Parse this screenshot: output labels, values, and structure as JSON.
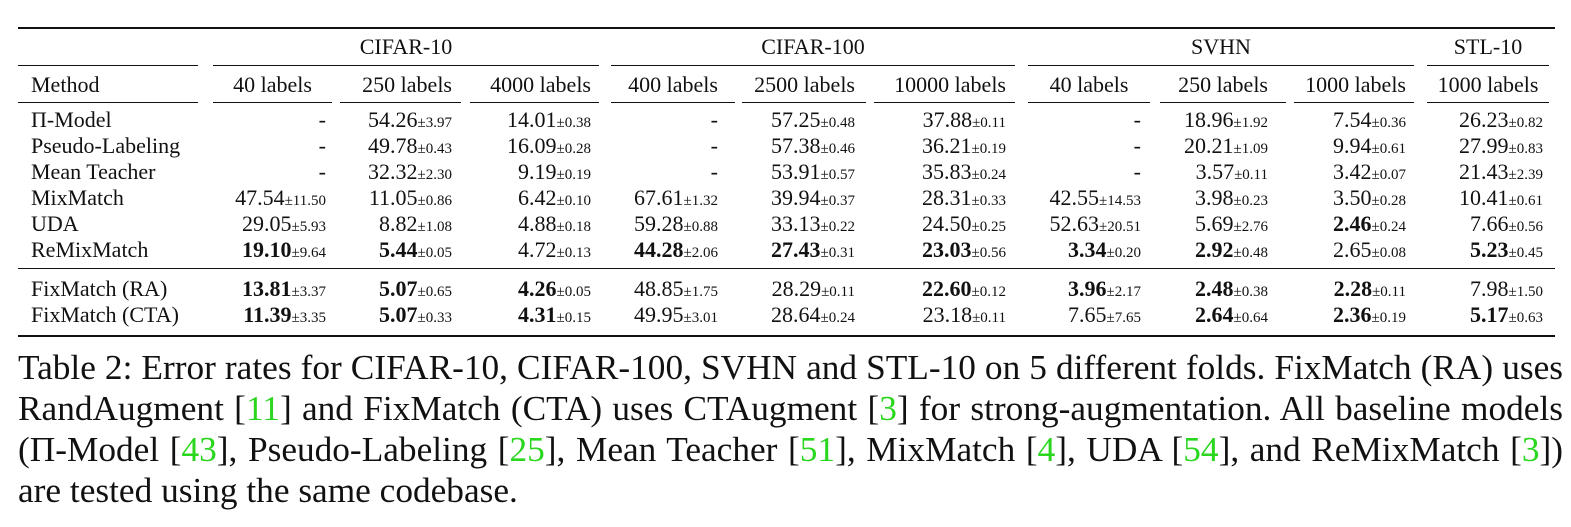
{
  "table": {
    "groups": [
      {
        "name": "CIFAR-10",
        "cols": 3
      },
      {
        "name": "CIFAR-100",
        "cols": 3
      },
      {
        "name": "SVHN",
        "cols": 3
      },
      {
        "name": "STL-10",
        "cols": 1
      }
    ],
    "method_header": "Method",
    "columns": [
      "40 labels",
      "250 labels",
      "4000 labels",
      "400 labels",
      "2500 labels",
      "10000 labels",
      "40 labels",
      "250 labels",
      "1000 labels",
      "1000 labels"
    ],
    "rows": [
      {
        "method": "Π-Model",
        "cells": [
          {
            "v": "-"
          },
          {
            "v": "54.26",
            "s": "±3.97"
          },
          {
            "v": "14.01",
            "s": "±0.38"
          },
          {
            "v": "-"
          },
          {
            "v": "57.25",
            "s": "±0.48"
          },
          {
            "v": "37.88",
            "s": "±0.11"
          },
          {
            "v": "-"
          },
          {
            "v": "18.96",
            "s": "±1.92"
          },
          {
            "v": "7.54",
            "s": "±0.36"
          },
          {
            "v": "26.23",
            "s": "±0.82"
          }
        ]
      },
      {
        "method": "Pseudo-Labeling",
        "cells": [
          {
            "v": "-"
          },
          {
            "v": "49.78",
            "s": "±0.43"
          },
          {
            "v": "16.09",
            "s": "±0.28"
          },
          {
            "v": "-"
          },
          {
            "v": "57.38",
            "s": "±0.46"
          },
          {
            "v": "36.21",
            "s": "±0.19"
          },
          {
            "v": "-"
          },
          {
            "v": "20.21",
            "s": "±1.09"
          },
          {
            "v": "9.94",
            "s": "±0.61"
          },
          {
            "v": "27.99",
            "s": "±0.83"
          }
        ]
      },
      {
        "method": "Mean Teacher",
        "cells": [
          {
            "v": "-"
          },
          {
            "v": "32.32",
            "s": "±2.30"
          },
          {
            "v": "9.19",
            "s": "±0.19"
          },
          {
            "v": "-"
          },
          {
            "v": "53.91",
            "s": "±0.57"
          },
          {
            "v": "35.83",
            "s": "±0.24"
          },
          {
            "v": "-"
          },
          {
            "v": "3.57",
            "s": "±0.11"
          },
          {
            "v": "3.42",
            "s": "±0.07"
          },
          {
            "v": "21.43",
            "s": "±2.39"
          }
        ]
      },
      {
        "method": "MixMatch",
        "cells": [
          {
            "v": "47.54",
            "s": "±11.50"
          },
          {
            "v": "11.05",
            "s": "±0.86"
          },
          {
            "v": "6.42",
            "s": "±0.10"
          },
          {
            "v": "67.61",
            "s": "±1.32"
          },
          {
            "v": "39.94",
            "s": "±0.37"
          },
          {
            "v": "28.31",
            "s": "±0.33"
          },
          {
            "v": "42.55",
            "s": "±14.53"
          },
          {
            "v": "3.98",
            "s": "±0.23"
          },
          {
            "v": "3.50",
            "s": "±0.28"
          },
          {
            "v": "10.41",
            "s": "±0.61"
          }
        ]
      },
      {
        "method": "UDA",
        "cells": [
          {
            "v": "29.05",
            "s": "±5.93"
          },
          {
            "v": "8.82",
            "s": "±1.08"
          },
          {
            "v": "4.88",
            "s": "±0.18"
          },
          {
            "v": "59.28",
            "s": "±0.88"
          },
          {
            "v": "33.13",
            "s": "±0.22"
          },
          {
            "v": "24.50",
            "s": "±0.25"
          },
          {
            "v": "52.63",
            "s": "±20.51"
          },
          {
            "v": "5.69",
            "s": "±2.76"
          },
          {
            "v": "2.46",
            "s": "±0.24",
            "b": true
          },
          {
            "v": "7.66",
            "s": "±0.56"
          }
        ]
      },
      {
        "method": "ReMixMatch",
        "cells": [
          {
            "v": "19.10",
            "s": "±9.64",
            "b": true
          },
          {
            "v": "5.44",
            "s": "±0.05",
            "b": true
          },
          {
            "v": "4.72",
            "s": "±0.13"
          },
          {
            "v": "44.28",
            "s": "±2.06",
            "b": true
          },
          {
            "v": "27.43",
            "s": "±0.31",
            "b": true
          },
          {
            "v": "23.03",
            "s": "±0.56",
            "b": true
          },
          {
            "v": "3.34",
            "s": "±0.20",
            "b": true
          },
          {
            "v": "2.92",
            "s": "±0.48",
            "b": true
          },
          {
            "v": "2.65",
            "s": "±0.08"
          },
          {
            "v": "5.23",
            "s": "±0.45",
            "b": true
          }
        ]
      },
      {
        "method": "FixMatch (RA)",
        "cells": [
          {
            "v": "13.81",
            "s": "±3.37",
            "b": true
          },
          {
            "v": "5.07",
            "s": "±0.65",
            "b": true
          },
          {
            "v": "4.26",
            "s": "±0.05",
            "b": true
          },
          {
            "v": "48.85",
            "s": "±1.75"
          },
          {
            "v": "28.29",
            "s": "±0.11"
          },
          {
            "v": "22.60",
            "s": "±0.12",
            "b": true
          },
          {
            "v": "3.96",
            "s": "±2.17",
            "b": true
          },
          {
            "v": "2.48",
            "s": "±0.38",
            "b": true
          },
          {
            "v": "2.28",
            "s": "±0.11",
            "b": true
          },
          {
            "v": "7.98",
            "s": "±1.50"
          }
        ]
      },
      {
        "method": "FixMatch (CTA)",
        "cells": [
          {
            "v": "11.39",
            "s": "±3.35",
            "b": true
          },
          {
            "v": "5.07",
            "s": "±0.33",
            "b": true
          },
          {
            "v": "4.31",
            "s": "±0.15",
            "b": true
          },
          {
            "v": "49.95",
            "s": "±3.01"
          },
          {
            "v": "28.64",
            "s": "±0.24"
          },
          {
            "v": "23.18",
            "s": "±0.11"
          },
          {
            "v": "7.65",
            "s": "±7.65"
          },
          {
            "v": "2.64",
            "s": "±0.64",
            "b": true
          },
          {
            "v": "2.36",
            "s": "±0.19",
            "b": true
          },
          {
            "v": "5.17",
            "s": "±0.63",
            "b": true
          }
        ]
      }
    ]
  },
  "caption": {
    "prefix": "Table 2: Error rates for CIFAR-10, CIFAR-100, SVHN and STL-10 on 5 different folds. FixMatch (RA) uses RandAugment [",
    "ref1": "11",
    "mid1": "] and FixMatch (CTA) uses CTAugment [",
    "ref2": "3",
    "mid2": "] for strong-augmentation. All baseline models (Π-Model [",
    "ref3": "43",
    "mid3": "], Pseudo-Labeling [",
    "ref4": "25",
    "mid4": "], Mean Teacher [",
    "ref5": "51",
    "mid5": "], MixMatch [",
    "ref6": "4",
    "mid6": "], UDA [",
    "ref7": "54",
    "mid7": "], and ReMixMatch [",
    "ref8": "3",
    "suffix": "]) are tested using the same codebase.",
    "ref_color": "#2ad61e"
  }
}
